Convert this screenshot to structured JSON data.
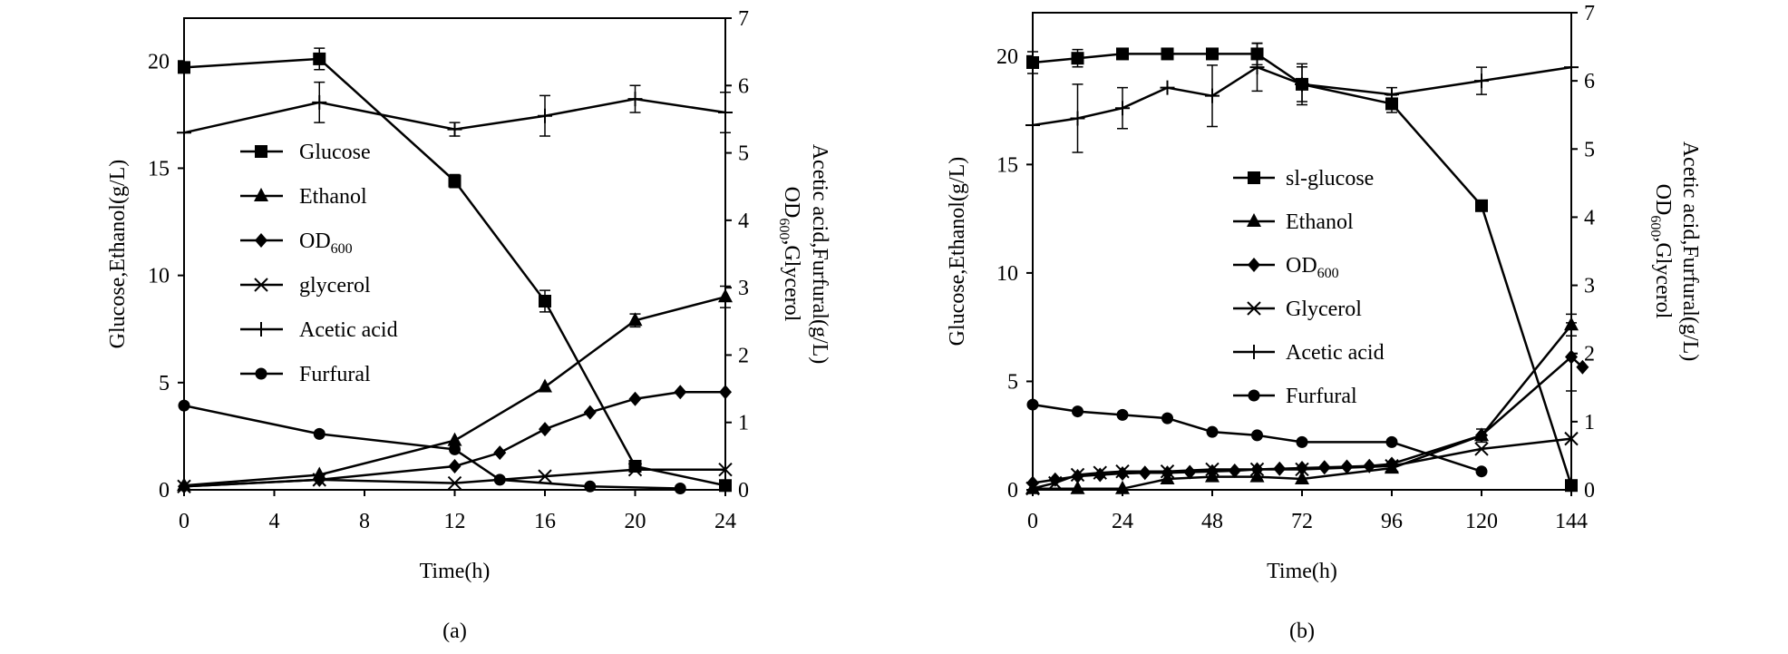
{
  "chart_data": [
    {
      "type": "line",
      "panel_label": "(a)",
      "xlabel": "Time(h)",
      "ylabel": "Glucose,Ethanol(g/L)",
      "ylabel2_line1": "OD600,Glycerol",
      "ylabel2_line2": "Acetic acid,Furfural(g/L)",
      "xlim": [
        0,
        24
      ],
      "ylim": [
        0,
        22
      ],
      "ylim2": [
        0,
        7
      ],
      "xticks": [
        0,
        4,
        8,
        12,
        16,
        20,
        24
      ],
      "yticks": [
        0,
        5,
        10,
        15,
        20
      ],
      "y2ticks": [
        0,
        1,
        2,
        3,
        4,
        5,
        6,
        7
      ],
      "series": [
        {
          "name": "Glucose",
          "marker": "square",
          "axis": "left",
          "x": [
            0,
            6,
            12,
            16,
            20,
            24
          ],
          "y": [
            19.7,
            20.1,
            14.4,
            8.8,
            1.1,
            0.2
          ],
          "err": [
            0,
            0.5,
            0.3,
            0.5,
            0,
            0
          ]
        },
        {
          "name": "Ethanol",
          "marker": "triangle",
          "axis": "left",
          "x": [
            0,
            6,
            12,
            16,
            20,
            24
          ],
          "y": [
            0.2,
            0.7,
            2.3,
            4.8,
            7.9,
            9.0
          ],
          "err": [
            0,
            0,
            0,
            0,
            0.3,
            0.5
          ]
        },
        {
          "name": "OD600",
          "marker": "diamond",
          "axis": "right",
          "x": [
            0,
            6,
            12,
            14,
            16,
            18,
            20,
            22,
            24
          ],
          "y": [
            0.05,
            0.15,
            0.35,
            0.55,
            0.9,
            1.15,
            1.35,
            1.45,
            1.45
          ],
          "err": [
            0,
            0,
            0,
            0,
            0,
            0,
            0,
            0,
            0
          ]
        },
        {
          "name": "glycerol",
          "marker": "x",
          "axis": "right",
          "x": [
            0,
            6,
            12,
            16,
            20,
            24
          ],
          "y": [
            0.05,
            0.15,
            0.1,
            0.2,
            0.3,
            0.3
          ],
          "err": [
            0,
            0,
            0,
            0,
            0,
            0
          ]
        },
        {
          "name": "Acetic acid",
          "marker": "plus",
          "axis": "right",
          "x": [
            0,
            6,
            12,
            16,
            20,
            24
          ],
          "y": [
            5.3,
            5.75,
            5.35,
            5.55,
            5.8,
            5.6
          ],
          "err": [
            0,
            0.3,
            0.1,
            0.3,
            0.2,
            0.3
          ]
        },
        {
          "name": "Furfural",
          "marker": "circle",
          "axis": "right",
          "x": [
            0,
            6,
            12,
            14,
            18,
            22
          ],
          "y": [
            1.25,
            0.83,
            0.6,
            0.15,
            0.05,
            0.02
          ],
          "err": [
            0,
            0,
            0,
            0,
            0,
            0
          ]
        }
      ]
    },
    {
      "type": "line",
      "panel_label": "(b)",
      "xlabel": "Time(h)",
      "ylabel": "Glucose,Ethanol(g/L)",
      "ylabel2_line1": "OD600,Glycerol",
      "ylabel2_line2": "Acetic acid,Furfural(g/L)",
      "xlim": [
        0,
        144
      ],
      "ylim": [
        0,
        22
      ],
      "ylim2": [
        0,
        7
      ],
      "xticks": [
        0,
        24,
        48,
        72,
        96,
        120,
        144
      ],
      "yticks": [
        0,
        5,
        10,
        15,
        20
      ],
      "y2ticks": [
        0,
        1,
        2,
        3,
        4,
        5,
        6,
        7
      ],
      "series": [
        {
          "name": "sl-glucose",
          "marker": "square",
          "axis": "left",
          "x": [
            0,
            12,
            24,
            36,
            48,
            60,
            72,
            96,
            120,
            144
          ],
          "y": [
            19.7,
            19.9,
            20.1,
            20.1,
            20.1,
            20.1,
            18.7,
            17.8,
            13.1,
            0.2
          ],
          "err": [
            0.5,
            0.4,
            0,
            0,
            0,
            0.5,
            0.8,
            0.4,
            0,
            0
          ]
        },
        {
          "name": "Ethanol",
          "marker": "triangle",
          "axis": "left",
          "x": [
            0,
            12,
            24,
            36,
            48,
            60,
            72,
            96,
            120,
            144
          ],
          "y": [
            0.05,
            0.05,
            0.05,
            0.5,
            0.6,
            0.6,
            0.5,
            1.0,
            2.5,
            7.6
          ],
          "err": [
            0,
            0,
            0,
            0,
            0,
            0,
            0,
            0,
            0.3,
            0.5
          ]
        },
        {
          "name": "OD600",
          "marker": "diamond",
          "axis": "right",
          "x": [
            0,
            6,
            12,
            18,
            24,
            30,
            36,
            42,
            48,
            54,
            60,
            66,
            72,
            78,
            84,
            90,
            96,
            120,
            144,
            147
          ],
          "y": [
            0.1,
            0.15,
            0.2,
            0.22,
            0.24,
            0.25,
            0.25,
            0.26,
            0.27,
            0.28,
            0.3,
            0.31,
            0.32,
            0.33,
            0.34,
            0.35,
            0.38,
            0.8,
            1.95,
            1.8
          ],
          "err": [
            0,
            0,
            0,
            0,
            0,
            0,
            0,
            0,
            0,
            0,
            0,
            0,
            0,
            0,
            0,
            0,
            0,
            0,
            0.5,
            0
          ]
        },
        {
          "name": "Glycerol",
          "marker": "x",
          "axis": "right",
          "x": [
            0,
            6,
            12,
            18,
            24,
            36,
            48,
            60,
            72,
            96,
            120,
            144
          ],
          "y": [
            0.02,
            0.1,
            0.22,
            0.25,
            0.27,
            0.27,
            0.3,
            0.3,
            0.3,
            0.35,
            0.6,
            0.75
          ],
          "err": [
            0,
            0,
            0,
            0,
            0,
            0,
            0,
            0,
            0,
            0,
            0,
            0
          ]
        },
        {
          "name": "Acetic acid",
          "marker": "plus",
          "axis": "right",
          "x": [
            0,
            12,
            24,
            36,
            48,
            60,
            72,
            96,
            120,
            144
          ],
          "y": [
            5.35,
            5.45,
            5.6,
            5.9,
            5.78,
            6.2,
            5.95,
            5.8,
            6.0,
            6.2
          ],
          "err": [
            0,
            0.5,
            0.3,
            0,
            0.45,
            0.35,
            0.3,
            0.1,
            0.2,
            0
          ]
        },
        {
          "name": "Furfural",
          "marker": "circle",
          "axis": "right",
          "x": [
            0,
            12,
            24,
            36,
            48,
            60,
            72,
            96,
            120
          ],
          "y": [
            1.25,
            1.15,
            1.1,
            1.05,
            0.85,
            0.8,
            0.7,
            0.7,
            0.27
          ],
          "err": [
            0,
            0,
            0,
            0,
            0,
            0,
            0,
            0,
            0
          ]
        }
      ]
    }
  ]
}
